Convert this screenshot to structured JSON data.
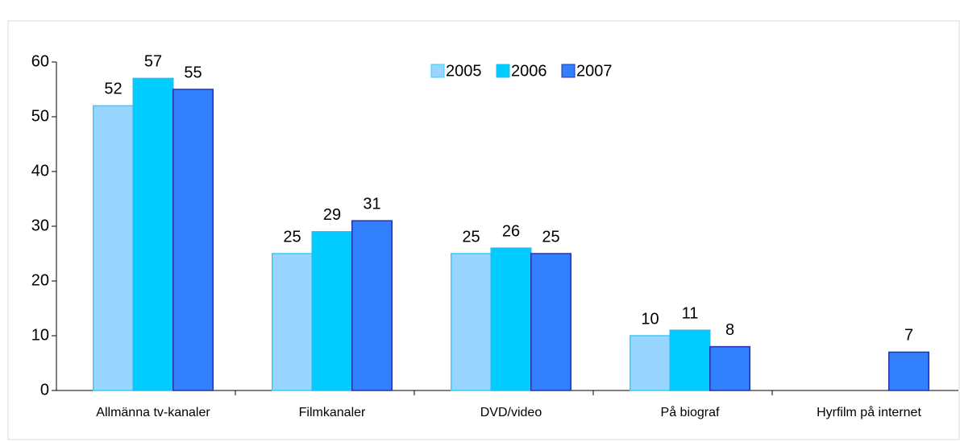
{
  "chart_data": {
    "type": "bar",
    "categories": [
      "Allmänna tv-kanaler",
      "Filmkanaler",
      "DVD/video",
      "På biograf",
      "Hyrfilm på internet"
    ],
    "series": [
      {
        "name": "2005",
        "color": "#99d6ff",
        "values": [
          52,
          25,
          25,
          10,
          null
        ]
      },
      {
        "name": "2006",
        "color": "#00ccff",
        "values": [
          57,
          29,
          26,
          11,
          null
        ]
      },
      {
        "name": "2007",
        "color": "#3380ff",
        "values": [
          55,
          31,
          25,
          8,
          7
        ]
      }
    ],
    "ylim": [
      0,
      60
    ],
    "yticks": [
      0,
      10,
      20,
      30,
      40,
      50,
      60
    ],
    "grid": false,
    "legend": "top"
  }
}
